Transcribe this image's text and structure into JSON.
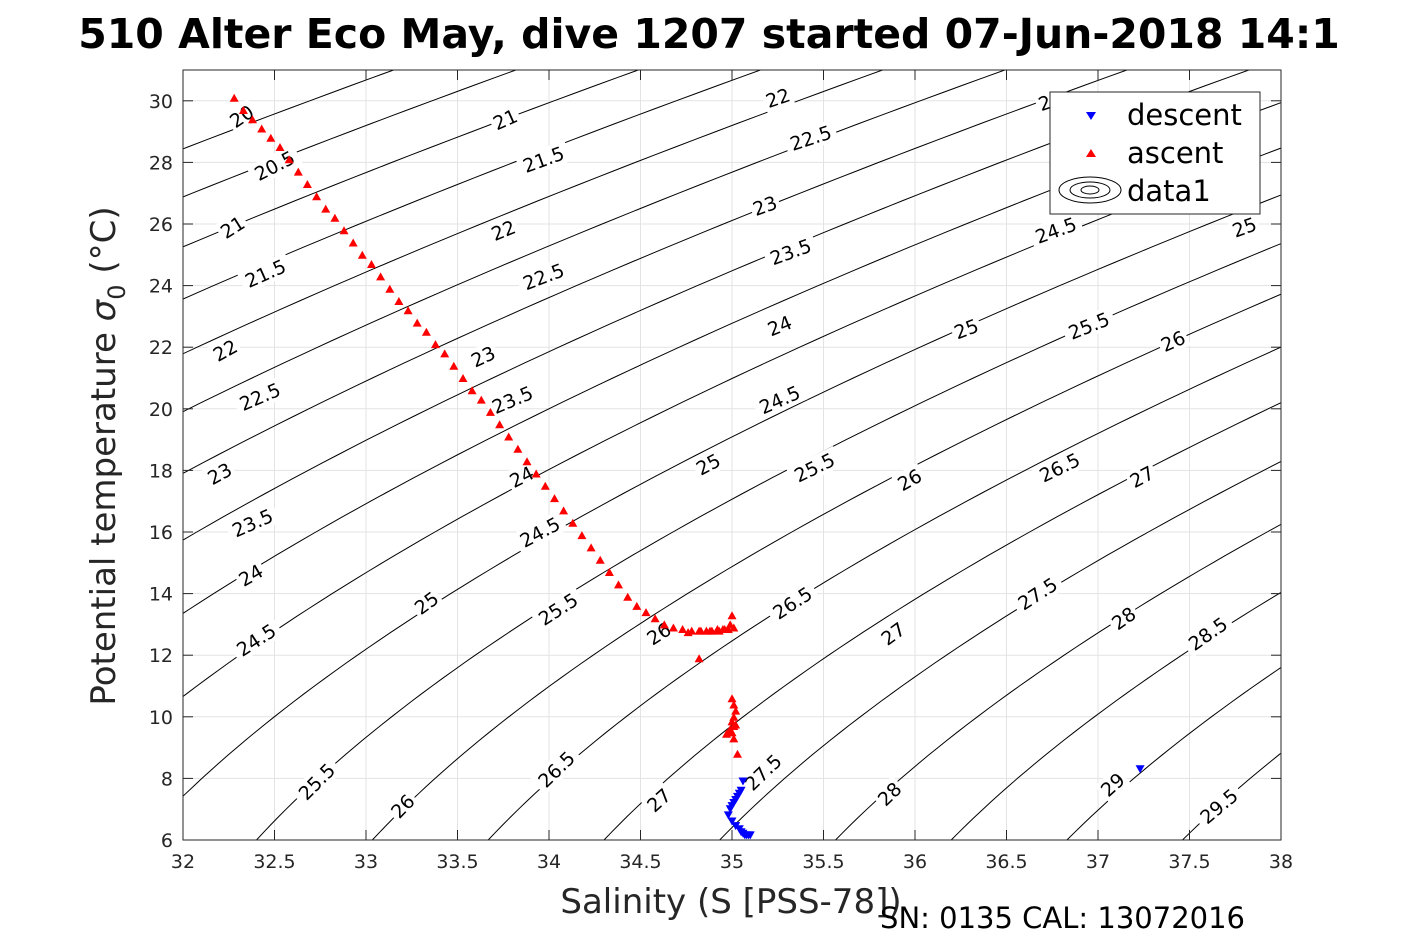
{
  "chart_data": {
    "type": "scatter",
    "title": "510 Alter Eco May, dive 1207 started 07-Jun-2018 14:1",
    "xlabel": "Salinity (S [PSS-78])",
    "ylabel_main": "Potential temperature ",
    "ylabel_sigma": "σ",
    "ylabel_sub": "0",
    "ylabel_unit": " (°C)",
    "footer": "SN: 0135  CAL: 13072016",
    "xlim": [
      32,
      38
    ],
    "ylim": [
      6,
      31
    ],
    "grid": true,
    "x_ticks": [
      32,
      32.5,
      33,
      33.5,
      34,
      34.5,
      35,
      35.5,
      36,
      36.5,
      37,
      37.5,
      38
    ],
    "x_tick_labels": [
      "32",
      "32.5",
      "33",
      "33.5",
      "34",
      "34.5",
      "35",
      "35.5",
      "36",
      "36.5",
      "37",
      "37.5",
      "38"
    ],
    "y_ticks": [
      6,
      8,
      10,
      12,
      14,
      16,
      18,
      20,
      22,
      24,
      26,
      28,
      30
    ],
    "y_tick_labels": [
      "6",
      "8",
      "10",
      "12",
      "14",
      "16",
      "18",
      "20",
      "22",
      "24",
      "26",
      "28",
      "30"
    ],
    "legend": {
      "position": "top-right",
      "entries": [
        "descent",
        "ascent",
        "data1"
      ]
    },
    "density_contours": {
      "name": "data1",
      "levels": [
        20,
        20.5,
        21,
        21.5,
        22,
        22.5,
        23,
        23.5,
        24,
        24.5,
        25,
        25.5,
        26,
        26.5,
        27,
        27.5,
        28,
        28.5,
        29,
        29.5
      ],
      "color": "#000000",
      "labels": [
        {
          "t": "20",
          "x": 32.32,
          "y": 29.5,
          "a": -34
        },
        {
          "t": "20.5",
          "x": 32.5,
          "y": 27.9,
          "a": -27
        },
        {
          "t": "21",
          "x": 32.27,
          "y": 25.9,
          "a": -32
        },
        {
          "t": "21.5",
          "x": 32.45,
          "y": 24.4,
          "a": -24
        },
        {
          "t": "22",
          "x": 32.23,
          "y": 21.9,
          "a": -29
        },
        {
          "t": "22.5",
          "x": 32.42,
          "y": 20.4,
          "a": -23
        },
        {
          "t": "23",
          "x": 32.2,
          "y": 17.9,
          "a": -29
        },
        {
          "t": "23.5",
          "x": 32.38,
          "y": 16.3,
          "a": -24
        },
        {
          "t": "24",
          "x": 32.37,
          "y": 14.6,
          "a": -30
        },
        {
          "t": "24.5",
          "x": 32.4,
          "y": 12.5,
          "a": -33
        },
        {
          "t": "25.5",
          "x": 32.73,
          "y": 7.9,
          "a": -45
        },
        {
          "t": "26",
          "x": 33.2,
          "y": 7.1,
          "a": -46
        },
        {
          "t": "21",
          "x": 33.76,
          "y": 29.4,
          "a": -24
        },
        {
          "t": "21.5",
          "x": 33.97,
          "y": 28.1,
          "a": -20
        },
        {
          "t": "22",
          "x": 33.75,
          "y": 25.8,
          "a": -22
        },
        {
          "t": "22.5",
          "x": 33.97,
          "y": 24.3,
          "a": -21
        },
        {
          "t": "23",
          "x": 33.64,
          "y": 21.7,
          "a": -25
        },
        {
          "t": "23.5",
          "x": 33.8,
          "y": 20.3,
          "a": -23
        },
        {
          "t": "24",
          "x": 33.85,
          "y": 17.8,
          "a": -27
        },
        {
          "t": "24.5",
          "x": 33.95,
          "y": 16.0,
          "a": -28
        },
        {
          "t": "25",
          "x": 33.33,
          "y": 13.7,
          "a": -36
        },
        {
          "t": "25.5",
          "x": 34.05,
          "y": 13.5,
          "a": -33
        },
        {
          "t": "26",
          "x": 34.6,
          "y": 12.7,
          "a": -33
        },
        {
          "t": "26.5",
          "x": 34.04,
          "y": 8.3,
          "a": -44
        },
        {
          "t": "27",
          "x": 34.6,
          "y": 7.3,
          "a": -42
        },
        {
          "t": "22",
          "x": 35.25,
          "y": 30.1,
          "a": -19
        },
        {
          "t": "22.5",
          "x": 35.43,
          "y": 28.8,
          "a": -18
        },
        {
          "t": "23",
          "x": 35.18,
          "y": 26.6,
          "a": -20
        },
        {
          "t": "23.5",
          "x": 35.32,
          "y": 25.1,
          "a": -20
        },
        {
          "t": "24",
          "x": 35.26,
          "y": 22.7,
          "a": -22
        },
        {
          "t": "24.5",
          "x": 35.26,
          "y": 20.3,
          "a": -24
        },
        {
          "t": "25",
          "x": 34.87,
          "y": 18.2,
          "a": -28
        },
        {
          "t": "25.5",
          "x": 35.45,
          "y": 18.1,
          "a": -26
        },
        {
          "t": "26",
          "x": 35.97,
          "y": 17.7,
          "a": -29
        },
        {
          "t": "26.5",
          "x": 35.33,
          "y": 13.7,
          "a": -33
        },
        {
          "t": "27",
          "x": 35.88,
          "y": 12.7,
          "a": -36
        },
        {
          "t": "27.5",
          "x": 35.17,
          "y": 8.2,
          "a": -44
        },
        {
          "t": "28",
          "x": 35.86,
          "y": 7.5,
          "a": -44
        },
        {
          "t": "24.5",
          "x": 36.77,
          "y": 25.8,
          "a": -20
        },
        {
          "t": "25",
          "x": 36.28,
          "y": 22.6,
          "a": -21
        },
        {
          "t": "25.5",
          "x": 36.95,
          "y": 22.7,
          "a": -22
        },
        {
          "t": "26",
          "x": 37.41,
          "y": 22.2,
          "a": -24
        },
        {
          "t": "26.5",
          "x": 36.79,
          "y": 18.1,
          "a": -26
        },
        {
          "t": "27",
          "x": 37.24,
          "y": 17.8,
          "a": -28
        },
        {
          "t": "27.5",
          "x": 36.67,
          "y": 14.0,
          "a": -33
        },
        {
          "t": "28",
          "x": 37.14,
          "y": 13.2,
          "a": -35
        },
        {
          "t": "28.5",
          "x": 37.6,
          "y": 12.7,
          "a": -35
        },
        {
          "t": "29",
          "x": 37.08,
          "y": 7.8,
          "a": -42
        },
        {
          "t": "29.5",
          "x": 37.66,
          "y": 7.1,
          "a": -40
        },
        {
          "t": "23",
          "x": 36.74,
          "y": 30.0,
          "a": -19
        },
        {
          "t": "25",
          "x": 37.8,
          "y": 25.9,
          "a": -20
        }
      ]
    },
    "series": [
      {
        "name": "descent",
        "color": "#0000ff",
        "marker": "triangle-down",
        "x": [
          37.23,
          35.06,
          35.05,
          35.04,
          35.03,
          35.02,
          35.01,
          35.0,
          34.99,
          34.98,
          35.0,
          35.02,
          35.04,
          35.05,
          35.06,
          35.07,
          35.08,
          35.09,
          35.1
        ],
        "y": [
          8.3,
          7.9,
          7.6,
          7.5,
          7.4,
          7.3,
          7.2,
          7.1,
          7.0,
          6.8,
          6.6,
          6.45,
          6.35,
          6.25,
          6.2,
          6.15,
          6.15,
          6.15,
          6.15
        ]
      },
      {
        "name": "ascent",
        "color": "#ff0000",
        "marker": "triangle-up",
        "x": [
          32.28,
          32.33,
          32.38,
          32.43,
          32.48,
          32.53,
          32.58,
          32.63,
          32.68,
          32.73,
          32.78,
          32.83,
          32.88,
          32.93,
          32.98,
          33.03,
          33.08,
          33.13,
          33.18,
          33.23,
          33.28,
          33.33,
          33.38,
          33.43,
          33.48,
          33.53,
          33.58,
          33.63,
          33.68,
          33.73,
          33.78,
          33.83,
          33.88,
          33.93,
          33.98,
          34.03,
          34.08,
          34.13,
          34.18,
          34.23,
          34.28,
          34.33,
          34.38,
          34.43,
          34.48,
          34.53,
          34.58,
          34.63,
          34.68,
          34.73,
          34.78,
          34.83,
          34.88,
          34.93,
          34.96,
          34.99,
          35.0,
          35.01,
          34.98,
          34.95,
          34.92,
          34.89,
          34.86,
          34.82,
          34.76,
          34.82,
          35.0,
          35.01,
          35.02,
          35.01,
          35.0,
          35.02,
          35.01,
          34.99,
          35.0,
          34.98,
          34.97,
          35.01,
          35.03
        ],
        "y": [
          30.1,
          29.7,
          29.4,
          29.1,
          28.8,
          28.5,
          28.1,
          27.7,
          27.3,
          26.9,
          26.5,
          26.2,
          25.8,
          25.4,
          25.0,
          24.7,
          24.3,
          23.9,
          23.5,
          23.2,
          22.8,
          22.5,
          22.1,
          21.8,
          21.4,
          21.0,
          20.6,
          20.3,
          19.9,
          19.5,
          19.1,
          18.7,
          18.3,
          17.9,
          17.5,
          17.1,
          16.7,
          16.3,
          15.9,
          15.5,
          15.1,
          14.7,
          14.3,
          13.9,
          13.6,
          13.4,
          13.2,
          13.0,
          12.9,
          12.85,
          12.8,
          12.8,
          12.8,
          12.8,
          12.85,
          13.0,
          13.3,
          12.9,
          12.85,
          12.85,
          12.85,
          12.8,
          12.8,
          12.8,
          12.75,
          11.9,
          10.6,
          10.4,
          10.2,
          10.0,
          9.85,
          9.75,
          9.7,
          9.6,
          9.5,
          9.5,
          9.45,
          9.3,
          8.8
        ]
      }
    ]
  }
}
